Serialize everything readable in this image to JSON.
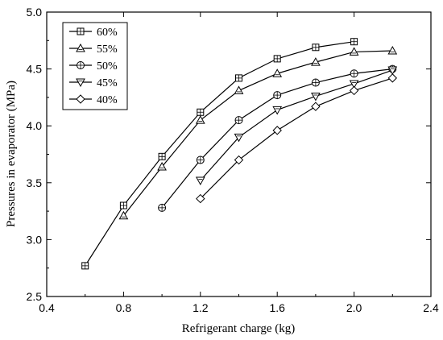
{
  "chart_data": {
    "type": "line",
    "title": "",
    "xlabel": "Refrigerant charge (kg)",
    "ylabel": "Pressures in evaporator (MPa)",
    "xlim": [
      0.4,
      2.4
    ],
    "ylim": [
      2.5,
      5.0
    ],
    "xticks": [
      "0.4",
      "0.8",
      "1.2",
      "1.6",
      "2.0",
      "2.4"
    ],
    "yticks": [
      "2.5",
      "3.0",
      "3.5",
      "4.0",
      "4.5",
      "5.0"
    ],
    "legend_position": "top-left",
    "series": [
      {
        "name": "60%",
        "marker": "square-plus",
        "x": [
          0.6,
          0.8,
          1.0,
          1.2,
          1.4,
          1.6,
          1.8,
          2.0
        ],
        "values": [
          2.77,
          3.3,
          3.73,
          4.12,
          4.42,
          4.59,
          4.69,
          4.74
        ]
      },
      {
        "name": "55%",
        "marker": "triangle-up",
        "x": [
          0.8,
          1.0,
          1.2,
          1.4,
          1.6,
          1.8,
          2.0,
          2.2
        ],
        "values": [
          3.21,
          3.64,
          4.05,
          4.31,
          4.46,
          4.56,
          4.65,
          4.66
        ]
      },
      {
        "name": "50%",
        "marker": "circle-plus",
        "x": [
          1.0,
          1.2,
          1.4,
          1.6,
          1.8,
          2.0,
          2.2
        ],
        "values": [
          3.28,
          3.7,
          4.05,
          4.27,
          4.38,
          4.46,
          4.5
        ]
      },
      {
        "name": "45%",
        "marker": "triangle-down",
        "x": [
          1.2,
          1.4,
          1.6,
          1.8,
          2.0,
          2.2
        ],
        "values": [
          3.52,
          3.9,
          4.14,
          4.26,
          4.37,
          4.49
        ]
      },
      {
        "name": "40%",
        "marker": "diamond",
        "x": [
          1.2,
          1.4,
          1.6,
          1.8,
          2.0,
          2.2
        ],
        "values": [
          3.36,
          3.7,
          3.96,
          4.17,
          4.31,
          4.42
        ]
      }
    ]
  }
}
